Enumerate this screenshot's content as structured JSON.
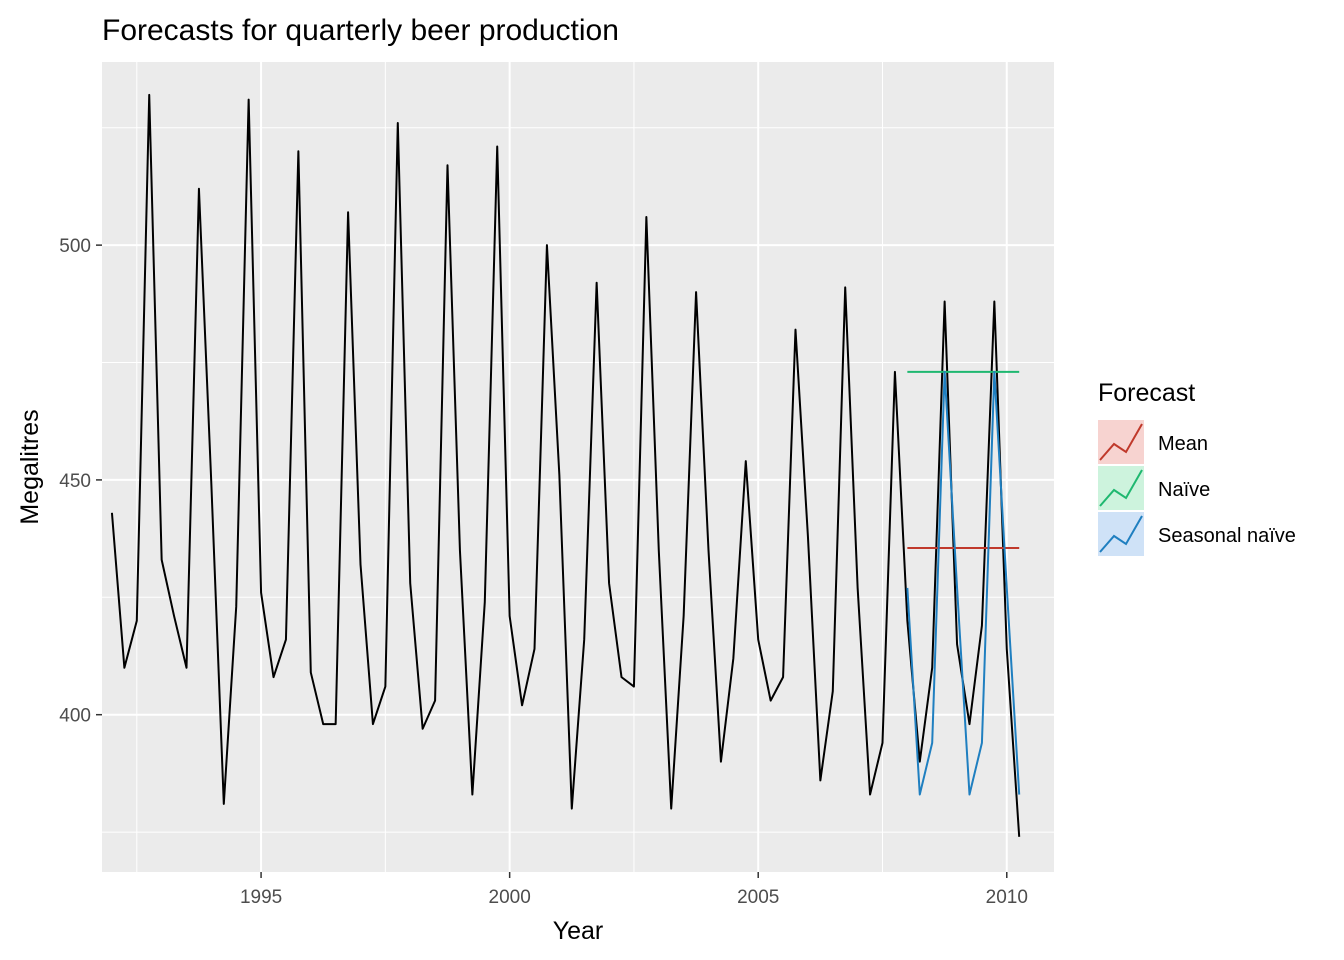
{
  "chart_data": {
    "type": "line",
    "title": "Forecasts for quarterly beer production",
    "xlabel": "Year",
    "ylabel": "Megalitres",
    "xlim": [
      1991.8,
      2010.95
    ],
    "ylim": [
      366.5,
      539
    ],
    "x_ticks": [
      1995,
      2000,
      2005,
      2010
    ],
    "x_tick_labels": [
      "1995",
      "2000",
      "2005",
      "2010"
    ],
    "y_ticks": [
      400,
      450,
      500
    ],
    "y_tick_labels": [
      "400",
      "450",
      "500"
    ],
    "grid": true,
    "observed": {
      "start": 1992.0,
      "frequency": 4,
      "color": "#000000",
      "values": [
        443,
        410,
        420,
        532,
        433,
        421,
        410,
        512,
        449,
        381,
        423,
        531,
        426,
        408,
        416,
        520,
        409,
        398,
        398,
        507,
        432,
        398,
        406,
        526,
        428,
        397,
        403,
        517,
        435,
        383,
        424,
        521,
        421,
        402,
        414,
        500,
        451,
        380,
        416,
        492,
        428,
        408,
        406,
        506,
        435,
        380,
        421,
        490,
        435,
        390,
        412,
        454,
        416,
        403,
        408,
        482,
        438,
        386,
        405,
        491,
        427,
        383,
        394,
        473,
        420,
        390,
        410,
        488,
        415,
        398,
        419,
        488,
        414,
        374
      ]
    },
    "legend": {
      "title": "Forecast",
      "position": "right",
      "entries": [
        "Mean",
        "Naïve",
        "Seasonal naïve"
      ]
    },
    "series": [
      {
        "name": "Mean",
        "color": "#c0392b",
        "key_fill": "#f7d3d0",
        "start": 2008.0,
        "frequency": 4,
        "values": [
          435.5,
          435.5,
          435.5,
          435.5,
          435.5,
          435.5,
          435.5,
          435.5,
          435.5,
          435.5
        ]
      },
      {
        "name": "Naïve",
        "color": "#1fb870",
        "key_fill": "#cdf3dd",
        "start": 2008.0,
        "frequency": 4,
        "values": [
          473,
          473,
          473,
          473,
          473,
          473,
          473,
          473,
          473,
          473
        ]
      },
      {
        "name": "Seasonal naïve",
        "color": "#1f7fc0",
        "key_fill": "#cfe2f7",
        "start": 2008.0,
        "frequency": 4,
        "values": [
          427,
          383,
          394,
          473,
          427,
          383,
          394,
          473,
          427,
          383
        ]
      }
    ]
  }
}
